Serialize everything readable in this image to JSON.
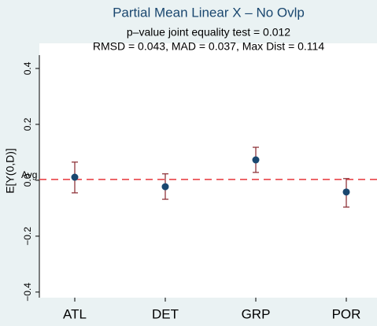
{
  "chart_data": {
    "type": "errorbar",
    "title": "Partial Mean Linear X – No Ovlp",
    "subtitle": [
      "p–value joint equality test = 0.012",
      "RMSD = 0.043, MAD = 0.037, Max Dist = 0.114"
    ],
    "y_label": "E[Y(0,D)]",
    "categories": [
      "ATL",
      "DET",
      "GRP",
      "POR"
    ],
    "series": [
      {
        "color": "#1a476f",
        "error_color": "#90353b",
        "values": [
          0.011,
          -0.023,
          0.073,
          -0.042
        ],
        "lower": [
          -0.045,
          -0.068,
          0.028,
          -0.096
        ],
        "upper": [
          0.065,
          0.023,
          0.118,
          0.006
        ]
      }
    ],
    "reference_line": {
      "label": "Avg",
      "value": 0.003,
      "color": "#e8363a"
    },
    "ylim": [
      -0.42,
      0.49
    ],
    "yticks": [
      {
        "value": -0.4,
        "label": "−0.4"
      },
      {
        "value": -0.2,
        "label": "−0.2"
      },
      {
        "value": 0,
        "label": "0.0"
      },
      {
        "value": 0.2,
        "label": "0.2"
      },
      {
        "value": 0.4,
        "label": "0.4"
      }
    ]
  }
}
